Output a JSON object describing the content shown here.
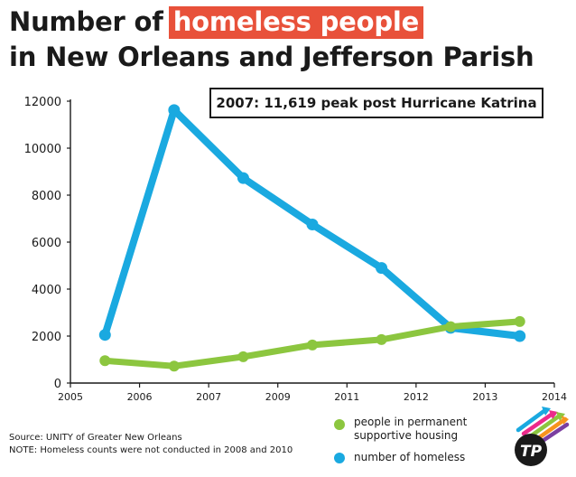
{
  "header": {
    "title_prefix": "Number of",
    "title_highlight": "homeless people",
    "title_line2": "in New Orleans and Jefferson Parish"
  },
  "annotation": "2007: 11,619 peak post Hurricane Katrina",
  "footer": {
    "source": "Source: UNITY of Greater New Orleans",
    "note": "NOTE: Homeless counts were not conducted in 2008 and 2010"
  },
  "legend": {
    "items": [
      {
        "label_line1": "people in permanent",
        "label_line2": "supportive housing",
        "color": "#8cc63f"
      },
      {
        "label_line1": "number of homeless",
        "label_line2": "",
        "color": "#1aa9e0"
      }
    ]
  },
  "colors": {
    "title_highlight_bg": "#e8513a",
    "supportive_housing": "#8cc63f",
    "homeless": "#1aa9e0",
    "text": "#1a1a1a"
  },
  "logo": {
    "text": "TP",
    "icon": "arrows-logo-icon"
  },
  "chart_data": {
    "type": "line",
    "title": "Number of homeless people in New Orleans and Jefferson Parish",
    "x_tick_labels": [
      "2005",
      "2006",
      "2007",
      "2009",
      "2011",
      "2012",
      "2013",
      "2014"
    ],
    "y_tick_labels": [
      "0",
      "2000",
      "4000",
      "6000",
      "8000",
      "10000",
      "12000"
    ],
    "ylim": [
      0,
      12000
    ],
    "grid": false,
    "legend_position": "bottom-right",
    "points_slot": [
      0.5,
      1.5,
      2.5,
      3.5,
      4.5,
      5.5,
      6.5
    ],
    "series": [
      {
        "name": "number of homeless",
        "color": "#1aa9e0",
        "values": [
          2050,
          11619,
          8725,
          6750,
          4900,
          2350,
          2000
        ]
      },
      {
        "name": "people in permanent supportive housing",
        "color": "#8cc63f",
        "values": [
          950,
          720,
          1120,
          1620,
          1850,
          2400,
          2620
        ]
      }
    ]
  }
}
